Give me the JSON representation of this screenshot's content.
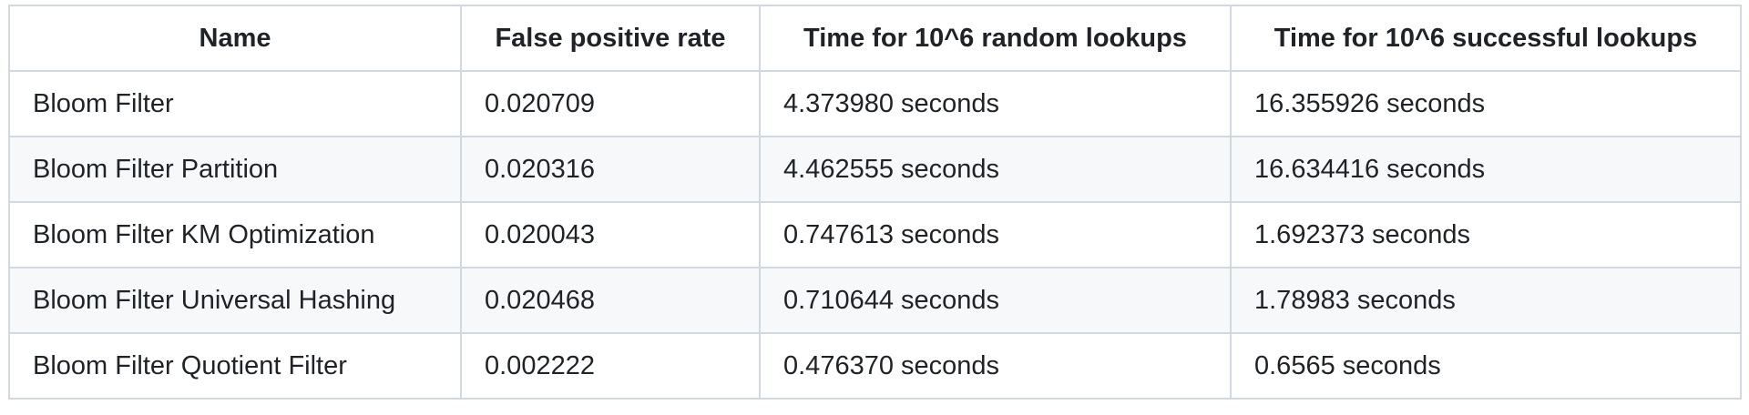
{
  "table": {
    "headers": [
      "Name",
      "False positive rate",
      "Time for 10^6 random lookups",
      "Time for 10^6 successful lookups"
    ],
    "rows": [
      [
        "Bloom Filter",
        "0.020709",
        "4.373980 seconds",
        "16.355926 seconds"
      ],
      [
        "Bloom Filter Partition",
        "0.020316",
        "4.462555 seconds",
        "16.634416 seconds"
      ],
      [
        "Bloom Filter KM Optimization",
        "0.020043",
        "0.747613 seconds",
        "1.692373 seconds"
      ],
      [
        "Bloom Filter Universal Hashing",
        "0.020468",
        "0.710644 seconds",
        "1.78983 seconds"
      ],
      [
        "Bloom Filter Quotient Filter",
        "0.002222",
        "0.476370 seconds",
        "0.6565 seconds"
      ]
    ]
  },
  "colors": {
    "border": "#d1d9e0",
    "stripe": "#f6f8fa",
    "text": "#1f2328"
  }
}
